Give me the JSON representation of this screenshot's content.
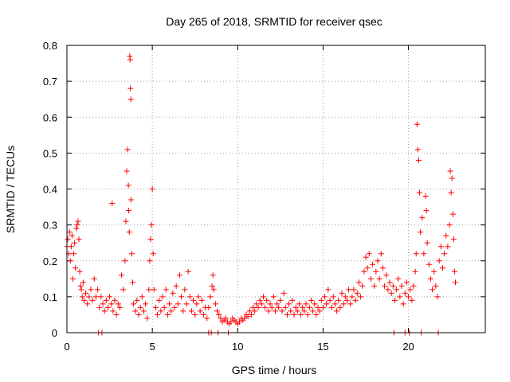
{
  "chart_data": {
    "type": "scatter",
    "title": "Day 265 of 2018, SRMTID for receiver qsec",
    "xlabel": "GPS time / hours",
    "ylabel": "SRMTID / TECUs",
    "xlim": [
      0,
      24.5
    ],
    "ylim": [
      0,
      0.8
    ],
    "xticks": [
      0,
      5,
      10,
      15,
      20
    ],
    "xtick_labels": [
      "0",
      "5",
      "10",
      "15",
      "20"
    ],
    "yticks": [
      0,
      0.1,
      0.2,
      0.3,
      0.4,
      0.5,
      0.6,
      0.7,
      0.8
    ],
    "ytick_labels": [
      "0",
      "0.1",
      "0.2",
      "0.3",
      "0.4",
      "0.5",
      "0.6",
      "0.7",
      "0.8"
    ],
    "grid": true,
    "marker": "+",
    "series": [
      {
        "name": "SRMTID",
        "color": "#ff0000",
        "points": [
          [
            0.0,
            0.24
          ],
          [
            0.05,
            0.26
          ],
          [
            0.1,
            0.22
          ],
          [
            0.15,
            0.28
          ],
          [
            0.2,
            0.2
          ],
          [
            0.25,
            0.24
          ],
          [
            0.3,
            0.27
          ],
          [
            0.35,
            0.15
          ],
          [
            0.4,
            0.22
          ],
          [
            0.45,
            0.25
          ],
          [
            0.5,
            0.18
          ],
          [
            0.55,
            0.29
          ],
          [
            0.6,
            0.3
          ],
          [
            0.65,
            0.31
          ],
          [
            0.7,
            0.26
          ],
          [
            0.75,
            0.17
          ],
          [
            0.8,
            0.13
          ],
          [
            0.85,
            0.12
          ],
          [
            0.9,
            0.1
          ],
          [
            0.95,
            0.14
          ],
          [
            1.0,
            0.09
          ],
          [
            1.1,
            0.11
          ],
          [
            1.2,
            0.08
          ],
          [
            1.3,
            0.1
          ],
          [
            1.4,
            0.12
          ],
          [
            1.5,
            0.09
          ],
          [
            1.6,
            0.15
          ],
          [
            1.7,
            0.1
          ],
          [
            1.8,
            0.12
          ],
          [
            1.9,
            0.07
          ],
          [
            2.0,
            0.1
          ],
          [
            2.1,
            0.08
          ],
          [
            2.2,
            0.06
          ],
          [
            2.3,
            0.09
          ],
          [
            2.4,
            0.07
          ],
          [
            2.5,
            0.1
          ],
          [
            2.6,
            0.08
          ],
          [
            2.65,
            0.36
          ],
          [
            2.7,
            0.06
          ],
          [
            2.8,
            0.09
          ],
          [
            2.9,
            0.05
          ],
          [
            3.0,
            0.08
          ],
          [
            3.1,
            0.07
          ],
          [
            3.2,
            0.16
          ],
          [
            3.3,
            0.12
          ],
          [
            3.4,
            0.2
          ],
          [
            3.45,
            0.31
          ],
          [
            3.5,
            0.45
          ],
          [
            3.55,
            0.51
          ],
          [
            3.6,
            0.41
          ],
          [
            3.62,
            0.34
          ],
          [
            3.65,
            0.28
          ],
          [
            3.68,
            0.77
          ],
          [
            3.7,
            0.76
          ],
          [
            3.72,
            0.68
          ],
          [
            3.74,
            0.65
          ],
          [
            3.75,
            0.37
          ],
          [
            3.8,
            0.22
          ],
          [
            3.85,
            0.14
          ],
          [
            3.9,
            0.08
          ],
          [
            4.0,
            0.06
          ],
          [
            4.1,
            0.09
          ],
          [
            4.2,
            0.05
          ],
          [
            4.3,
            0.07
          ],
          [
            4.4,
            0.1
          ],
          [
            4.5,
            0.06
          ],
          [
            4.6,
            0.08
          ],
          [
            4.7,
            0.04
          ],
          [
            4.8,
            0.12
          ],
          [
            4.85,
            0.2
          ],
          [
            4.9,
            0.26
          ],
          [
            4.95,
            0.3
          ],
          [
            5.0,
            0.4
          ],
          [
            5.05,
            0.22
          ],
          [
            5.1,
            0.12
          ],
          [
            5.2,
            0.07
          ],
          [
            5.3,
            0.05
          ],
          [
            5.4,
            0.09
          ],
          [
            5.5,
            0.06
          ],
          [
            5.6,
            0.1
          ],
          [
            5.7,
            0.07
          ],
          [
            5.8,
            0.12
          ],
          [
            5.9,
            0.05
          ],
          [
            6.0,
            0.08
          ],
          [
            6.1,
            0.06
          ],
          [
            6.2,
            0.11
          ],
          [
            6.3,
            0.07
          ],
          [
            6.4,
            0.13
          ],
          [
            6.5,
            0.08
          ],
          [
            6.6,
            0.16
          ],
          [
            6.7,
            0.1
          ],
          [
            6.8,
            0.06
          ],
          [
            6.9,
            0.12
          ],
          [
            7.0,
            0.08
          ],
          [
            7.1,
            0.17
          ],
          [
            7.2,
            0.1
          ],
          [
            7.3,
            0.06
          ],
          [
            7.4,
            0.09
          ],
          [
            7.5,
            0.05
          ],
          [
            7.6,
            0.08
          ],
          [
            7.7,
            0.1
          ],
          [
            7.8,
            0.06
          ],
          [
            7.9,
            0.09
          ],
          [
            8.0,
            0.05
          ],
          [
            8.1,
            0.07
          ],
          [
            8.2,
            0.04
          ],
          [
            8.3,
            0.07
          ],
          [
            8.4,
            0.1
          ],
          [
            8.5,
            0.13
          ],
          [
            8.55,
            0.16
          ],
          [
            8.6,
            0.12
          ],
          [
            8.7,
            0.08
          ],
          [
            8.8,
            0.06
          ],
          [
            8.9,
            0.05
          ],
          [
            9.0,
            0.04
          ],
          [
            9.1,
            0.03
          ],
          [
            9.2,
            0.035
          ],
          [
            9.3,
            0.04
          ],
          [
            9.4,
            0.03
          ],
          [
            9.5,
            0.025
          ],
          [
            9.6,
            0.03
          ],
          [
            9.7,
            0.04
          ],
          [
            9.8,
            0.035
          ],
          [
            9.9,
            0.03
          ],
          [
            10.0,
            0.025
          ],
          [
            10.1,
            0.03
          ],
          [
            10.2,
            0.04
          ],
          [
            10.3,
            0.035
          ],
          [
            10.4,
            0.04
          ],
          [
            10.5,
            0.05
          ],
          [
            10.6,
            0.045
          ],
          [
            10.7,
            0.06
          ],
          [
            10.8,
            0.05
          ],
          [
            10.9,
            0.07
          ],
          [
            11.0,
            0.06
          ],
          [
            11.1,
            0.08
          ],
          [
            11.2,
            0.07
          ],
          [
            11.3,
            0.09
          ],
          [
            11.4,
            0.08
          ],
          [
            11.5,
            0.1
          ],
          [
            11.6,
            0.07
          ],
          [
            11.7,
            0.09
          ],
          [
            11.8,
            0.06
          ],
          [
            11.9,
            0.08
          ],
          [
            12.0,
            0.07
          ],
          [
            12.1,
            0.1
          ],
          [
            12.2,
            0.06
          ],
          [
            12.3,
            0.08
          ],
          [
            12.4,
            0.07
          ],
          [
            12.5,
            0.09
          ],
          [
            12.6,
            0.06
          ],
          [
            12.7,
            0.11
          ],
          [
            12.8,
            0.07
          ],
          [
            12.9,
            0.05
          ],
          [
            13.0,
            0.08
          ],
          [
            13.1,
            0.06
          ],
          [
            13.2,
            0.09
          ],
          [
            13.3,
            0.05
          ],
          [
            13.4,
            0.07
          ],
          [
            13.5,
            0.06
          ],
          [
            13.6,
            0.08
          ],
          [
            13.7,
            0.05
          ],
          [
            13.8,
            0.07
          ],
          [
            13.9,
            0.06
          ],
          [
            14.0,
            0.08
          ],
          [
            14.1,
            0.05
          ],
          [
            14.2,
            0.07
          ],
          [
            14.3,
            0.09
          ],
          [
            14.4,
            0.06
          ],
          [
            14.5,
            0.08
          ],
          [
            14.6,
            0.05
          ],
          [
            14.7,
            0.07
          ],
          [
            14.8,
            0.06
          ],
          [
            14.9,
            0.09
          ],
          [
            15.0,
            0.07
          ],
          [
            15.1,
            0.1
          ],
          [
            15.2,
            0.08
          ],
          [
            15.3,
            0.12
          ],
          [
            15.4,
            0.09
          ],
          [
            15.5,
            0.07
          ],
          [
            15.6,
            0.1
          ],
          [
            15.7,
            0.08
          ],
          [
            15.8,
            0.06
          ],
          [
            15.9,
            0.09
          ],
          [
            16.0,
            0.07
          ],
          [
            16.1,
            0.11
          ],
          [
            16.2,
            0.08
          ],
          [
            16.3,
            0.1
          ],
          [
            16.4,
            0.09
          ],
          [
            16.5,
            0.12
          ],
          [
            16.6,
            0.08
          ],
          [
            16.7,
            0.1
          ],
          [
            16.8,
            0.12
          ],
          [
            16.9,
            0.09
          ],
          [
            17.0,
            0.11
          ],
          [
            17.1,
            0.14
          ],
          [
            17.2,
            0.1
          ],
          [
            17.3,
            0.13
          ],
          [
            17.4,
            0.17
          ],
          [
            17.5,
            0.21
          ],
          [
            17.6,
            0.18
          ],
          [
            17.7,
            0.22
          ],
          [
            17.8,
            0.15
          ],
          [
            17.9,
            0.19
          ],
          [
            18.0,
            0.13
          ],
          [
            18.1,
            0.17
          ],
          [
            18.2,
            0.2
          ],
          [
            18.3,
            0.15
          ],
          [
            18.4,
            0.22
          ],
          [
            18.5,
            0.18
          ],
          [
            18.6,
            0.13
          ],
          [
            18.7,
            0.16
          ],
          [
            18.8,
            0.12
          ],
          [
            18.9,
            0.14
          ],
          [
            19.0,
            0.11
          ],
          [
            19.1,
            0.13
          ],
          [
            19.2,
            0.09
          ],
          [
            19.3,
            0.12
          ],
          [
            19.4,
            0.15
          ],
          [
            19.5,
            0.1
          ],
          [
            19.6,
            0.13
          ],
          [
            19.7,
            0.08
          ],
          [
            19.8,
            0.11
          ],
          [
            19.9,
            0.14
          ],
          [
            20.0,
            0.1
          ],
          [
            20.1,
            0.12
          ],
          [
            20.2,
            0.09
          ],
          [
            20.3,
            0.13
          ],
          [
            20.4,
            0.17
          ],
          [
            20.45,
            0.22
          ],
          [
            20.5,
            0.58
          ],
          [
            20.55,
            0.51
          ],
          [
            20.6,
            0.48
          ],
          [
            20.65,
            0.39
          ],
          [
            20.7,
            0.28
          ],
          [
            20.8,
            0.32
          ],
          [
            20.9,
            0.22
          ],
          [
            21.0,
            0.38
          ],
          [
            21.05,
            0.34
          ],
          [
            21.1,
            0.25
          ],
          [
            21.2,
            0.19
          ],
          [
            21.3,
            0.15
          ],
          [
            21.4,
            0.12
          ],
          [
            21.5,
            0.17
          ],
          [
            21.6,
            0.13
          ],
          [
            21.7,
            0.1
          ],
          [
            21.8,
            0.2
          ],
          [
            21.9,
            0.24
          ],
          [
            22.0,
            0.18
          ],
          [
            22.1,
            0.22
          ],
          [
            22.2,
            0.27
          ],
          [
            22.3,
            0.24
          ],
          [
            22.4,
            0.3
          ],
          [
            22.45,
            0.45
          ],
          [
            22.5,
            0.39
          ],
          [
            22.55,
            0.43
          ],
          [
            22.6,
            0.33
          ],
          [
            22.65,
            0.26
          ],
          [
            22.7,
            0.17
          ],
          [
            22.75,
            0.14
          ],
          [
            1.85,
            0.0
          ],
          [
            2.05,
            0.0
          ],
          [
            8.3,
            0.0
          ],
          [
            8.45,
            0.0
          ],
          [
            8.85,
            0.0
          ],
          [
            9.45,
            0.0
          ],
          [
            19.15,
            0.0
          ],
          [
            19.8,
            0.0
          ],
          [
            20.05,
            0.0
          ],
          [
            20.75,
            0.0
          ],
          [
            21.75,
            0.0
          ]
        ]
      }
    ]
  }
}
